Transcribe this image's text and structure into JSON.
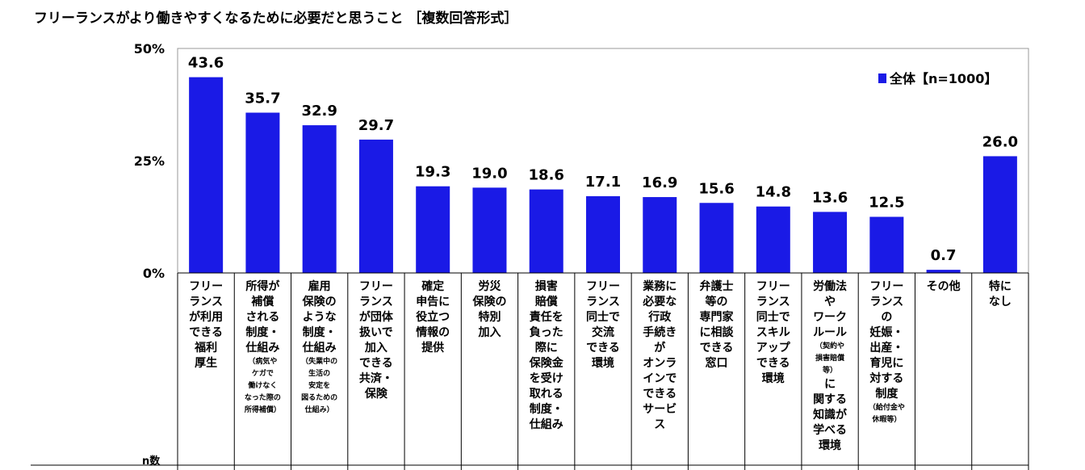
{
  "title": "フリーランスがより働きやすくなるために必要だと思うこと ［複数回答形式］",
  "n_label": "n数",
  "chart_data": {
    "type": "bar",
    "title": "フリーランスがより働きやすくなるために必要だと思うこと ［複数回答形式］",
    "ylim": [
      0,
      50
    ],
    "yticks": [
      "0%",
      "25%",
      "50%"
    ],
    "ytick_values": [
      0,
      25,
      50
    ],
    "legend": "top-right",
    "bar_color": "#1a1ae6",
    "series": [
      {
        "name": "全体【n=1000】",
        "values": [
          43.6,
          35.7,
          32.9,
          29.7,
          19.3,
          19.0,
          18.6,
          17.1,
          16.9,
          15.6,
          14.8,
          13.6,
          12.5,
          0.7,
          26.0
        ],
        "labels": [
          "43.6",
          "35.7",
          "32.9",
          "29.7",
          "19.3",
          "19.0",
          "18.6",
          "17.1",
          "16.9",
          "15.6",
          "14.8",
          "13.6",
          "12.5",
          "0.7",
          "26.0"
        ]
      }
    ],
    "categories": [
      {
        "lines": [
          "フリー",
          "ランス",
          "が利用",
          "できる",
          "福利",
          "厚生"
        ],
        "sub": []
      },
      {
        "lines": [
          "所得が",
          "補償",
          "される",
          "制度・",
          "仕組み"
        ],
        "sub": [
          "（病気や",
          "ケガで",
          "働けなく",
          "なった際の",
          "所得補償）"
        ]
      },
      {
        "lines": [
          "雇用",
          "保険の",
          "ような",
          "制度・",
          "仕組み"
        ],
        "sub": [
          "（失業中の",
          "生活の",
          "安定を",
          "図るための",
          "仕組み）"
        ]
      },
      {
        "lines": [
          "フリー",
          "ランス",
          "が団体",
          "扱いで",
          "加入",
          "できる",
          "共済・",
          "保険"
        ],
        "sub": []
      },
      {
        "lines": [
          "確定",
          "申告に",
          "役立つ",
          "情報の",
          "提供"
        ],
        "sub": []
      },
      {
        "lines": [
          "労災",
          "保険の",
          "特別",
          "加入"
        ],
        "sub": []
      },
      {
        "lines": [
          "損害",
          "賠償",
          "責任を",
          "負った",
          "際に",
          "保険金",
          "を受け",
          "取れる",
          "制度・",
          "仕組み"
        ],
        "sub": []
      },
      {
        "lines": [
          "フリー",
          "ランス",
          "同士で",
          "交流",
          "できる",
          "環境"
        ],
        "sub": []
      },
      {
        "lines": [
          "業務に",
          "必要な",
          "行政",
          "手続き",
          "が",
          "オンラ",
          "インで",
          "できる",
          "サービ",
          "ス"
        ],
        "sub": []
      },
      {
        "lines": [
          "弁護士",
          "等の",
          "専門家",
          "に相談",
          "できる",
          "窓口"
        ],
        "sub": []
      },
      {
        "lines": [
          "フリー",
          "ランス",
          "同士で",
          "スキル",
          "アップ",
          "できる",
          "環境"
        ],
        "sub": []
      },
      {
        "lines": [
          "労働法",
          "や",
          "ワーク",
          "ルール"
        ],
        "sub": [
          "（契約や",
          "損害賠償",
          "等）"
        ],
        "after": [
          "に",
          "関する",
          "知識が",
          "学べる",
          "環境"
        ]
      },
      {
        "lines": [
          "フリー",
          "ランス",
          "の",
          "妊娠・",
          "出産・",
          "育児に",
          "対する",
          "制度"
        ],
        "sub": [
          "（給付金や",
          "休暇等）"
        ]
      },
      {
        "lines": [
          "その他"
        ],
        "sub": []
      },
      {
        "lines": [
          "特に",
          "なし"
        ],
        "sub": []
      }
    ]
  }
}
